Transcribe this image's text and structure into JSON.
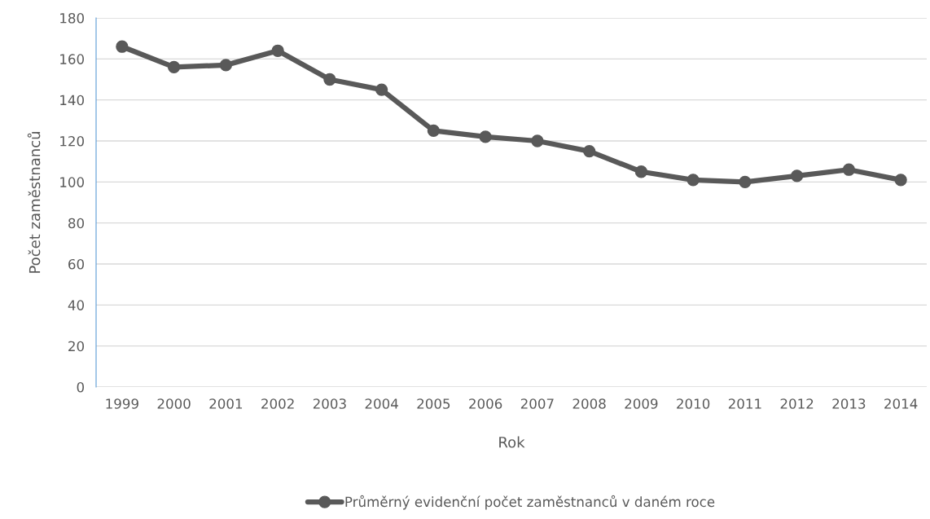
{
  "chart_data": {
    "type": "line",
    "xlabel": "Rok",
    "ylabel": "Počet zaměstnanců",
    "categories": [
      "1999",
      "2000",
      "2001",
      "2002",
      "2003",
      "2004",
      "2005",
      "2006",
      "2007",
      "2008",
      "2009",
      "2010",
      "2011",
      "2012",
      "2013",
      "2014"
    ],
    "series": [
      {
        "name": "Průměrný evidenční počet zaměstnanců v daném roce",
        "color": "#595959",
        "values": [
          166,
          156,
          157,
          164,
          150,
          145,
          125,
          122,
          120,
          115,
          105,
          101,
          100,
          103,
          106,
          101
        ]
      }
    ],
    "ylim": [
      0,
      180
    ],
    "yticks": [
      0,
      20,
      40,
      60,
      80,
      100,
      120,
      140,
      160,
      180
    ],
    "grid": "y",
    "legend": "bottom",
    "marker": "circle",
    "line_style": "solid"
  }
}
